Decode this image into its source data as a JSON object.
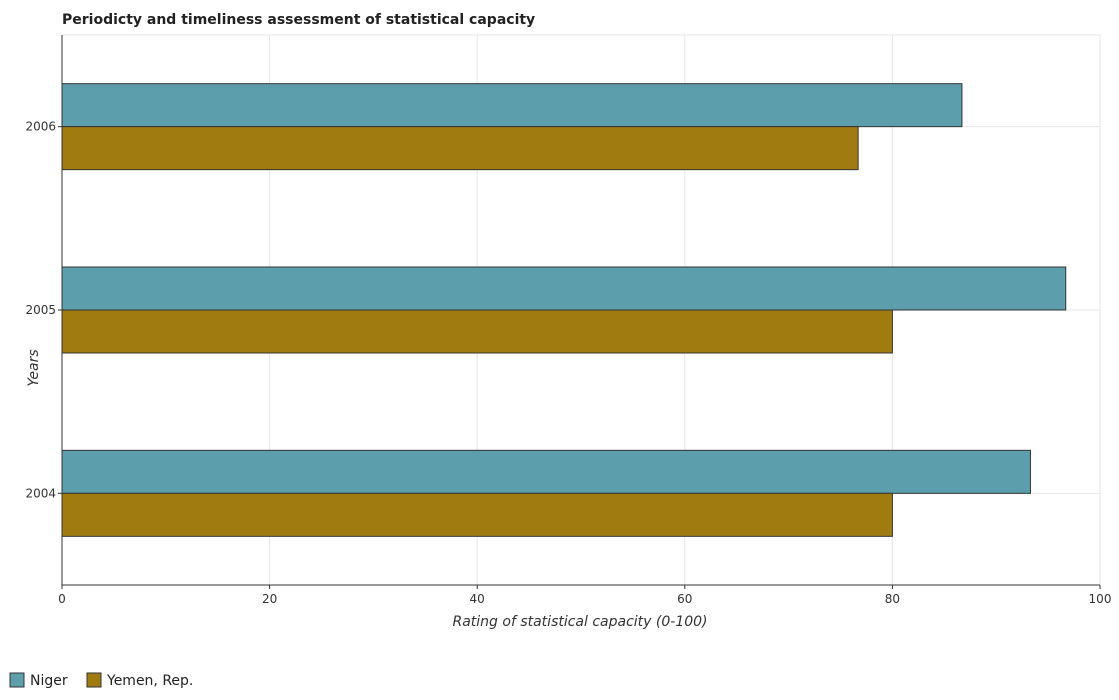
{
  "chart_data": {
    "type": "bar",
    "orientation": "horizontal",
    "title": "Periodicty and timeliness assessment of statistical capacity",
    "xlabel": "Rating of statistical capacity (0-100)",
    "ylabel": "Years",
    "categories": [
      "2004",
      "2005",
      "2006"
    ],
    "series": [
      {
        "name": "Niger",
        "values": [
          93.3,
          96.7,
          86.7
        ],
        "color": "#5d9ead"
      },
      {
        "name": "Yemen, Rep.",
        "values": [
          80.0,
          80.0,
          76.7
        ],
        "color": "#a07b10"
      }
    ],
    "xlim": [
      0,
      100
    ],
    "xticks": [
      0,
      20,
      40,
      60,
      80,
      100
    ],
    "grid": true,
    "legend": "bottom-left"
  }
}
